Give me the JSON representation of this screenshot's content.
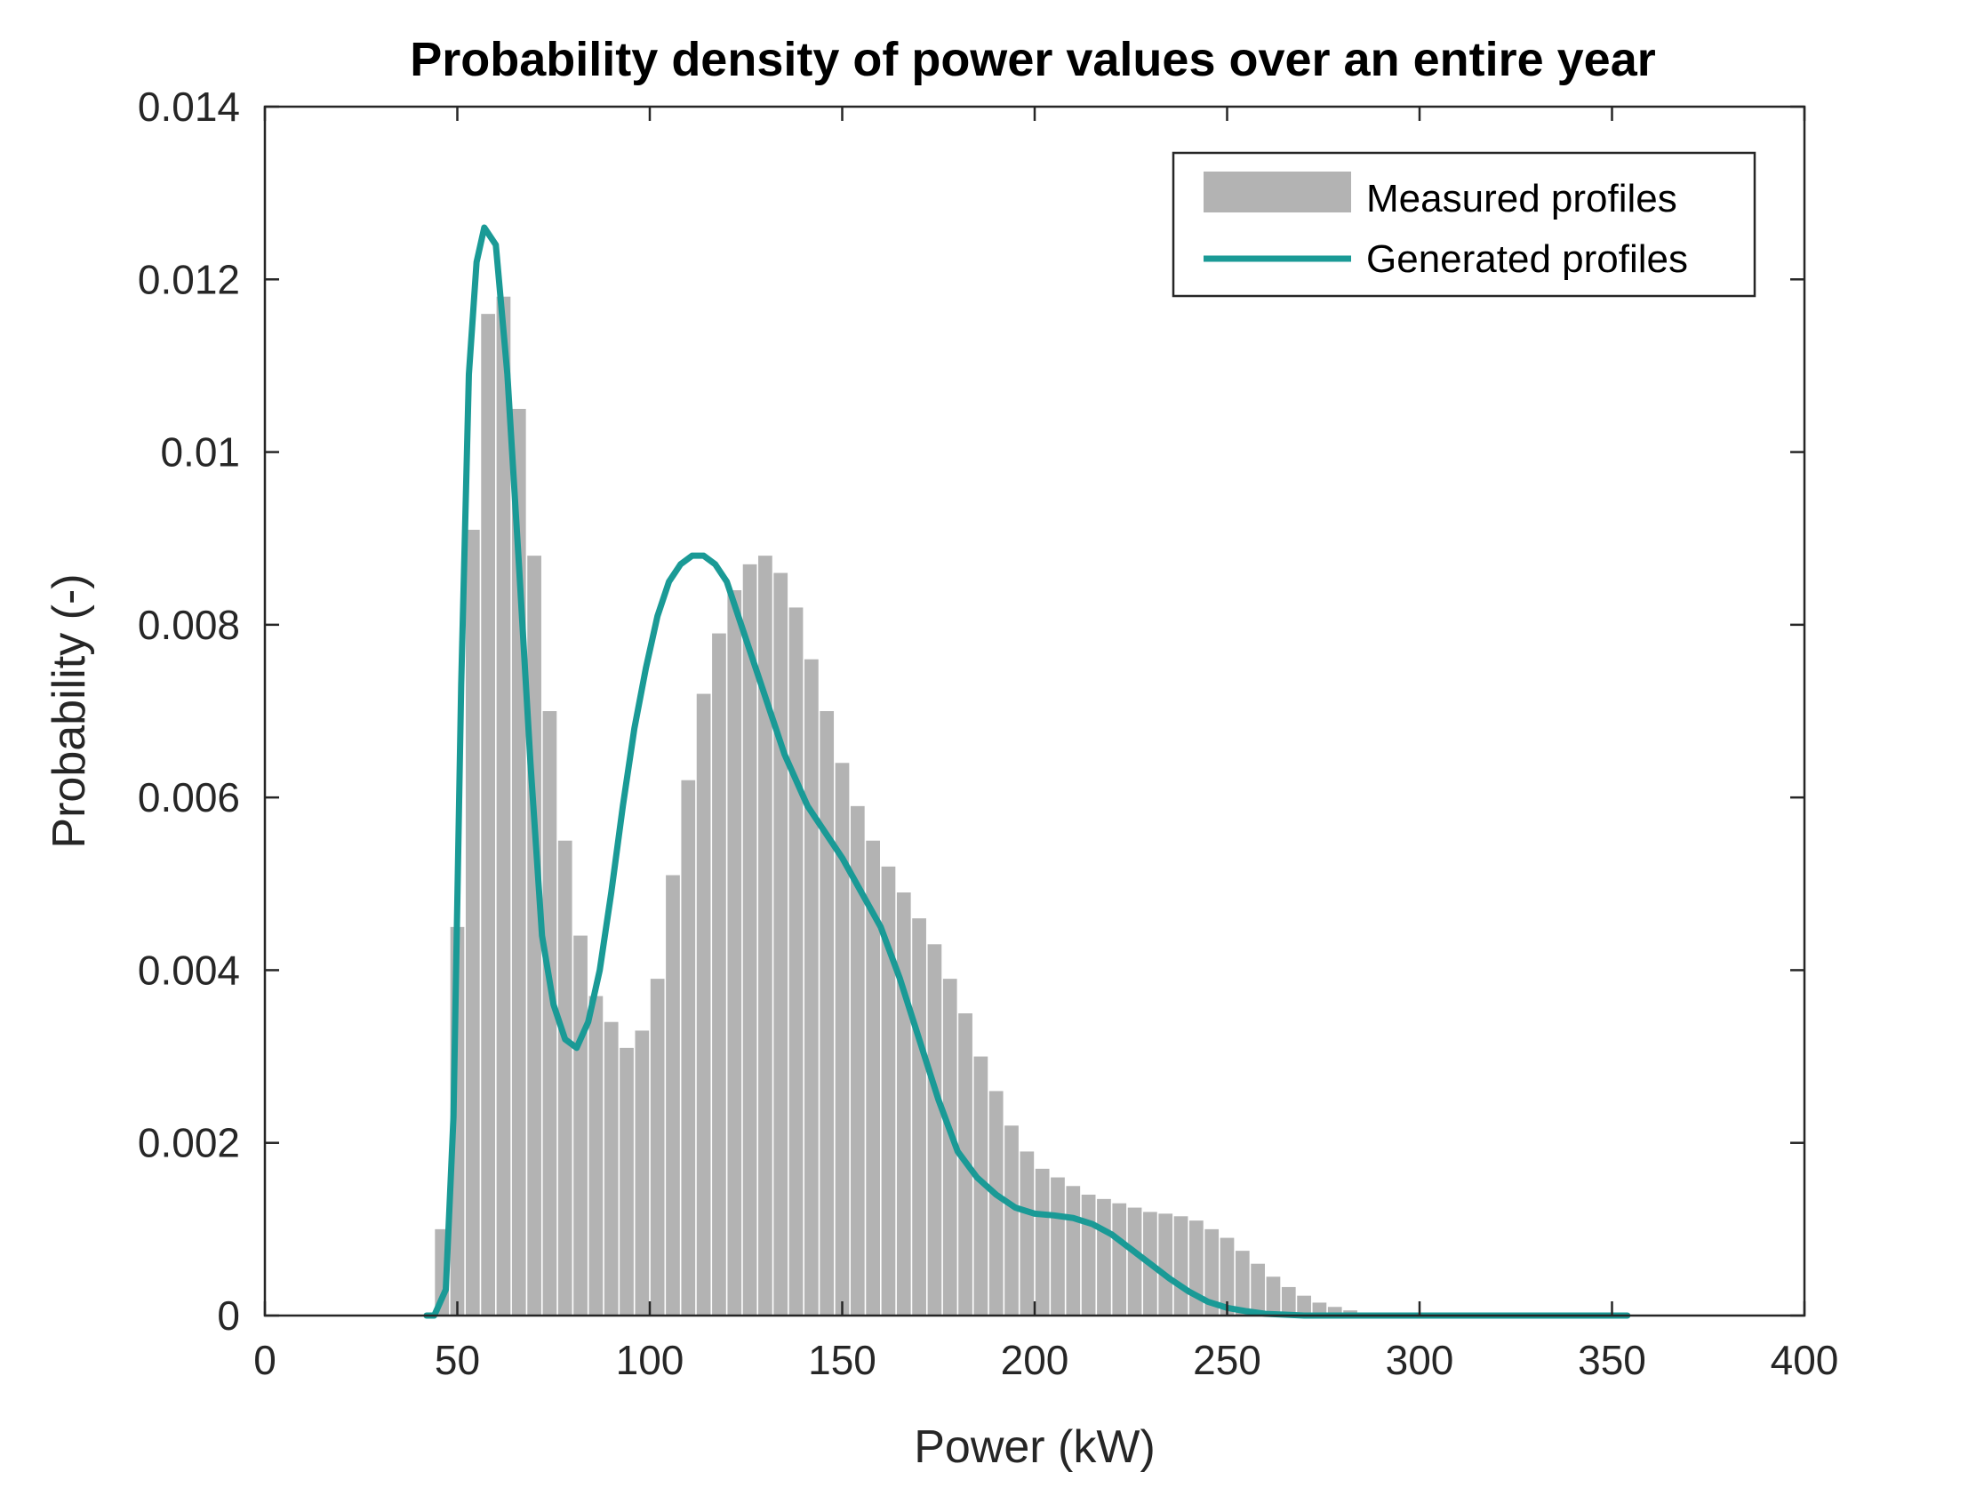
{
  "chart_data": {
    "type": "bar",
    "title": "Probability density of power values over an entire year",
    "xlabel": "Power (kW)",
    "ylabel": "Probability (-)",
    "xlim": [
      0,
      400
    ],
    "ylim": [
      0,
      0.014
    ],
    "xticks": [
      0,
      50,
      100,
      150,
      200,
      250,
      300,
      350,
      400
    ],
    "xtick_labels": [
      "0",
      "50",
      "100",
      "150",
      "200",
      "250",
      "300",
      "350",
      "400"
    ],
    "yticks": [
      0,
      0.002,
      0.004,
      0.006,
      0.008,
      0.01,
      0.012,
      0.014
    ],
    "ytick_labels": [
      "0",
      "0.002",
      "0.004",
      "0.006",
      "0.008",
      "0.01",
      "0.012",
      "0.014"
    ],
    "grid": false,
    "legend_position": "top-right",
    "colors": {
      "bars": "#b3b3b3",
      "line": "#1a9a96",
      "axes": "#262626"
    },
    "bin_width": 4,
    "series": [
      {
        "name": "Measured profiles",
        "kind": "bar",
        "x": [
          46,
          50,
          54,
          58,
          62,
          66,
          70,
          74,
          78,
          82,
          86,
          90,
          94,
          98,
          102,
          106,
          110,
          114,
          118,
          122,
          126,
          130,
          134,
          138,
          142,
          146,
          150,
          154,
          158,
          162,
          166,
          170,
          174,
          178,
          182,
          186,
          190,
          194,
          198,
          202,
          206,
          210,
          214,
          218,
          222,
          226,
          230,
          234,
          238,
          242,
          246,
          250,
          254,
          258,
          262,
          266,
          270,
          274,
          278,
          282,
          286,
          290
        ],
        "values": [
          0.001,
          0.0045,
          0.0091,
          0.0116,
          0.0118,
          0.0105,
          0.0088,
          0.007,
          0.0055,
          0.0044,
          0.0037,
          0.0034,
          0.0031,
          0.0033,
          0.0039,
          0.0051,
          0.0062,
          0.0072,
          0.0079,
          0.0084,
          0.0087,
          0.0088,
          0.0086,
          0.0082,
          0.0076,
          0.007,
          0.0064,
          0.0059,
          0.0055,
          0.0052,
          0.0049,
          0.0046,
          0.0043,
          0.0039,
          0.0035,
          0.003,
          0.0026,
          0.0022,
          0.0019,
          0.0017,
          0.0016,
          0.0015,
          0.0014,
          0.00135,
          0.0013,
          0.00125,
          0.0012,
          0.00118,
          0.00115,
          0.0011,
          0.001,
          0.0009,
          0.00075,
          0.0006,
          0.00045,
          0.00033,
          0.00023,
          0.00015,
          0.0001,
          6e-05,
          3e-05,
          1e-05
        ]
      },
      {
        "name": "Generated profiles",
        "kind": "line",
        "x": [
          42,
          44,
          47,
          49,
          51,
          53,
          55,
          57,
          60,
          63,
          66,
          69,
          72,
          75,
          78,
          81,
          84,
          87,
          90,
          93,
          96,
          99,
          102,
          105,
          108,
          111,
          114,
          117,
          120,
          123,
          126,
          129,
          132,
          135,
          138,
          141,
          144,
          147,
          150,
          155,
          160,
          165,
          170,
          175,
          180,
          185,
          190,
          195,
          200,
          205,
          210,
          215,
          220,
          225,
          230,
          235,
          240,
          245,
          250,
          255,
          260,
          265,
          270,
          275,
          280,
          285,
          290,
          295,
          300,
          310,
          320,
          330,
          340,
          350,
          354
        ],
        "values": [
          0,
          0,
          0.0003,
          0.0023,
          0.0073,
          0.0109,
          0.0122,
          0.0126,
          0.0124,
          0.0109,
          0.0087,
          0.0064,
          0.0044,
          0.0036,
          0.0032,
          0.0031,
          0.0034,
          0.004,
          0.0049,
          0.0059,
          0.0068,
          0.0075,
          0.0081,
          0.0085,
          0.0087,
          0.0088,
          0.0088,
          0.0087,
          0.0085,
          0.0081,
          0.0077,
          0.0073,
          0.0069,
          0.0065,
          0.0062,
          0.0059,
          0.0057,
          0.0055,
          0.0053,
          0.0049,
          0.0045,
          0.0039,
          0.0032,
          0.0025,
          0.0019,
          0.0016,
          0.0014,
          0.00125,
          0.00118,
          0.00116,
          0.00113,
          0.00106,
          0.00094,
          0.00077,
          0.0006,
          0.00043,
          0.00028,
          0.00016,
          9e-05,
          5e-05,
          2e-05,
          1e-05,
          0,
          0,
          0,
          0,
          0,
          0,
          0,
          0,
          0,
          0,
          0,
          0,
          0
        ]
      }
    ]
  }
}
